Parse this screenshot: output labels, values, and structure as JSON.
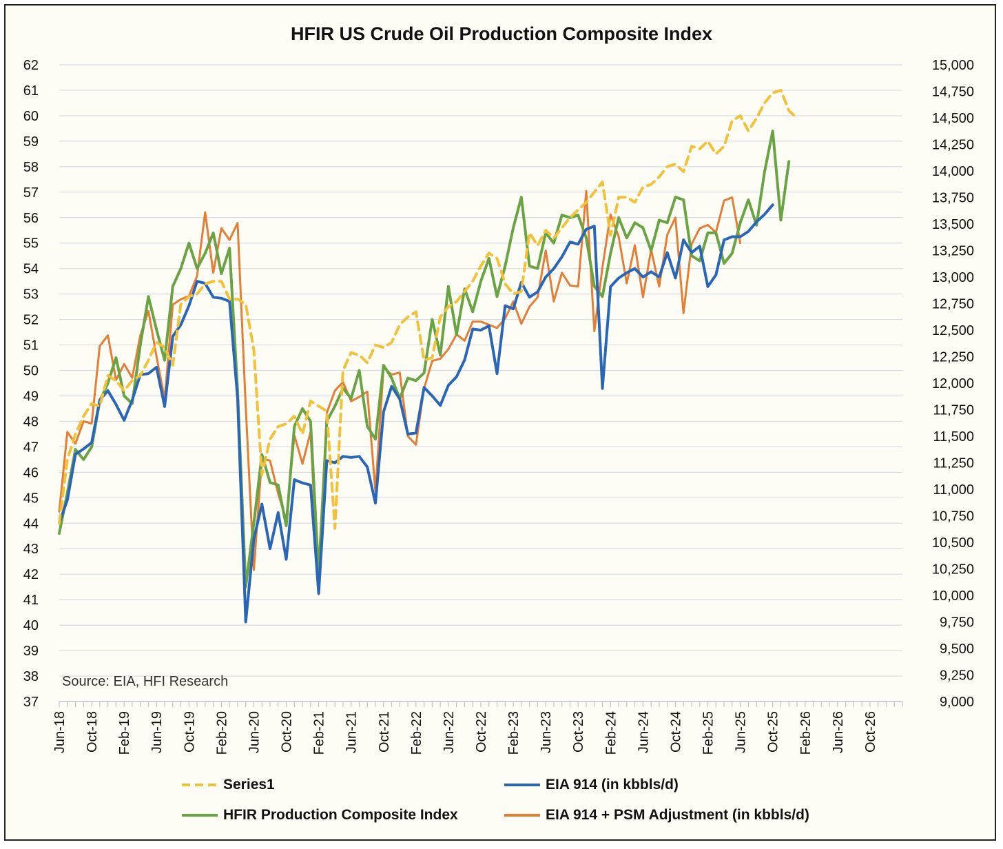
{
  "chart_data": {
    "type": "line",
    "title": "HFIR US Crude Oil Production Composite Index",
    "source_note": "Source: EIA, HFI Research",
    "left_axis": {
      "ylim": [
        37,
        62
      ],
      "ticks": [
        "37",
        "38",
        "39",
        "40",
        "41",
        "42",
        "43",
        "44",
        "45",
        "46",
        "47",
        "48",
        "49",
        "50",
        "51",
        "52",
        "53",
        "54",
        "55",
        "56",
        "57",
        "58",
        "59",
        "60",
        "61",
        "62"
      ]
    },
    "right_axis": {
      "ylim": [
        9000,
        15000
      ],
      "ticks": [
        "9,000",
        "9,250",
        "9,500",
        "9,750",
        "10,000",
        "10,250",
        "10,500",
        "10,750",
        "11,000",
        "11,250",
        "11,500",
        "11,750",
        "12,000",
        "12,250",
        "12,500",
        "12,750",
        "13,000",
        "13,250",
        "13,500",
        "13,750",
        "14,000",
        "14,250",
        "14,500",
        "14,750",
        "15,000"
      ]
    },
    "x_tick_labels": [
      "Jun-18",
      "Oct-18",
      "Feb-19",
      "Jun-19",
      "Oct-19",
      "Feb-20",
      "Jun-20",
      "Oct-20",
      "Feb-21",
      "Jun-21",
      "Oct-21",
      "Feb-22",
      "Jun-22",
      "Oct-22",
      "Feb-23",
      "Jun-23",
      "Oct-23",
      "Feb-24",
      "Jun-24",
      "Oct-24",
      "Feb-25",
      "Jun-25",
      "Oct-25",
      "Feb-26",
      "Jun-26",
      "Oct-26"
    ],
    "x_start": "Jun-18",
    "n_months": 104,
    "series": [
      {
        "name": "Series1",
        "color": "#f2c13a",
        "dash": true,
        "axis": "left",
        "values": [
          44.0,
          46.5,
          47.5,
          48.2,
          48.7,
          48.6,
          49.8,
          49.6,
          49.2,
          49.6,
          49.8,
          50.4,
          51.1,
          50.9,
          50.2,
          52.6,
          52.9,
          53.0,
          53.4,
          53.5,
          53.5,
          52.8,
          52.8,
          52.6,
          50.8,
          45.9,
          47.3,
          47.8,
          47.9,
          48.2,
          47.5,
          48.8,
          48.6,
          48.4,
          43.8,
          50.0,
          50.7,
          50.6,
          50.3,
          51.0,
          50.9,
          51.1,
          51.8,
          52.1,
          52.3,
          50.4,
          50.5,
          52.1,
          52.5,
          52.7,
          53.1,
          53.5,
          54.1,
          54.6,
          54.4,
          53.4,
          53.0,
          53.1,
          55.4,
          54.9,
          55.5,
          55.2,
          55.6,
          56.0,
          56.3,
          56.6,
          57.0,
          57.4,
          55.3,
          56.8,
          56.8,
          56.6,
          57.2,
          57.3,
          57.6,
          58.0,
          58.1,
          57.8,
          58.8,
          58.7,
          59.0,
          58.5,
          58.8,
          59.8,
          60.0,
          59.4,
          59.9,
          60.5,
          60.9,
          61.0,
          60.2,
          59.9
        ],
        "start_index": 0
      },
      {
        "name": "EIA 914 (in kbbls/d)",
        "color": "#2a66b8",
        "dash": false,
        "axis": "right",
        "values": [
          10680,
          10900,
          11330,
          11380,
          11440,
          11840,
          11930,
          11800,
          11650,
          11840,
          12080,
          12090,
          12150,
          11780,
          12440,
          12550,
          12730,
          12960,
          12940,
          12810,
          12800,
          12770,
          11860,
          9750,
          10530,
          10860,
          10440,
          10780,
          10340,
          11090,
          11060,
          11040,
          10020,
          11270,
          11250,
          11310,
          11300,
          11310,
          11210,
          10870,
          11730,
          11970,
          11850,
          11520,
          11530,
          11960,
          11880,
          11790,
          11980,
          12060,
          12220,
          12510,
          12500,
          12540,
          12090,
          12730,
          12700,
          12950,
          12810,
          12860,
          13000,
          13080,
          13190,
          13330,
          13310,
          13450,
          13480,
          11950,
          12910,
          12990,
          13040,
          13080,
          13000,
          13050,
          13000,
          13230,
          12990,
          13350,
          13230,
          13290,
          12910,
          13020,
          13350,
          13380,
          13380,
          13430,
          13520,
          13590,
          13680
        ],
        "start_index": 0
      },
      {
        "name": "HFIR Production Composite Index",
        "color": "#6aa344",
        "dash": false,
        "axis": "left",
        "values": [
          43.6,
          45.2,
          46.9,
          46.5,
          47.0,
          48.8,
          49.5,
          50.5,
          49.0,
          48.7,
          51.0,
          52.9,
          51.6,
          50.4,
          53.3,
          54.0,
          55.0,
          54.0,
          54.6,
          55.4,
          53.8,
          54.8,
          49.2,
          41.5,
          44.0,
          46.7,
          45.6,
          45.5,
          43.9,
          47.8,
          48.5,
          48.0,
          42.0,
          48.0,
          48.6,
          49.3,
          48.9,
          50.0,
          47.8,
          47.3,
          50.2,
          49.7,
          48.9,
          49.7,
          49.6,
          49.9,
          52.0,
          50.6,
          53.3,
          51.4,
          53.2,
          52.3,
          53.5,
          54.4,
          52.9,
          54.1,
          55.6,
          56.8,
          54.1,
          54.0,
          55.4,
          55.0,
          56.1,
          56.0,
          56.1,
          55.2,
          53.3,
          52.9,
          54.6,
          56.0,
          55.2,
          55.8,
          55.6,
          54.7,
          55.9,
          55.8,
          56.8,
          56.7,
          54.5,
          54.3,
          55.4,
          55.4,
          54.2,
          54.6,
          55.8,
          56.7,
          55.7,
          57.8,
          59.4,
          55.9,
          58.2
        ],
        "start_index": 0
      },
      {
        "name": "EIA 914 + PSM Adjustment (in kbbls/d)",
        "color": "#e47d35",
        "dash": false,
        "axis": "right",
        "values": [
          10790,
          11540,
          11430,
          11640,
          11620,
          12350,
          12450,
          12030,
          12180,
          12050,
          12450,
          12680,
          12250,
          11850,
          12740,
          12790,
          12820,
          13010,
          13610,
          13040,
          13460,
          13350,
          13510,
          11780,
          10240,
          11290,
          11270,
          10960,
          10710,
          11510,
          11240,
          11540,
          10010,
          11720,
          11930,
          12010,
          11830,
          11870,
          11920,
          10980,
          12150,
          12080,
          12100,
          11500,
          11420,
          11950,
          12210,
          12230,
          12320,
          12460,
          12400,
          12580,
          12580,
          12550,
          12520,
          12610,
          12770,
          12560,
          12720,
          12810,
          13250,
          12770,
          13040,
          12920,
          12910,
          13810,
          12490,
          13090,
          13590,
          13380,
          12940,
          13300,
          12810,
          13260,
          12910,
          13400,
          13560,
          12660,
          13310,
          13460,
          13490,
          13420,
          13720,
          13750,
          13320
        ],
        "start_index": 0
      }
    ]
  },
  "legend": [
    {
      "label": "Series1",
      "color": "#f2c13a",
      "dash": true
    },
    {
      "label": "EIA 914 (in kbbls/d)",
      "color": "#2a66b8",
      "dash": false
    },
    {
      "label": "HFIR Production Composite Index",
      "color": "#6aa344",
      "dash": false
    },
    {
      "label": "EIA 914 + PSM Adjustment (in kbbls/d)",
      "color": "#e47d35",
      "dash": false
    }
  ]
}
